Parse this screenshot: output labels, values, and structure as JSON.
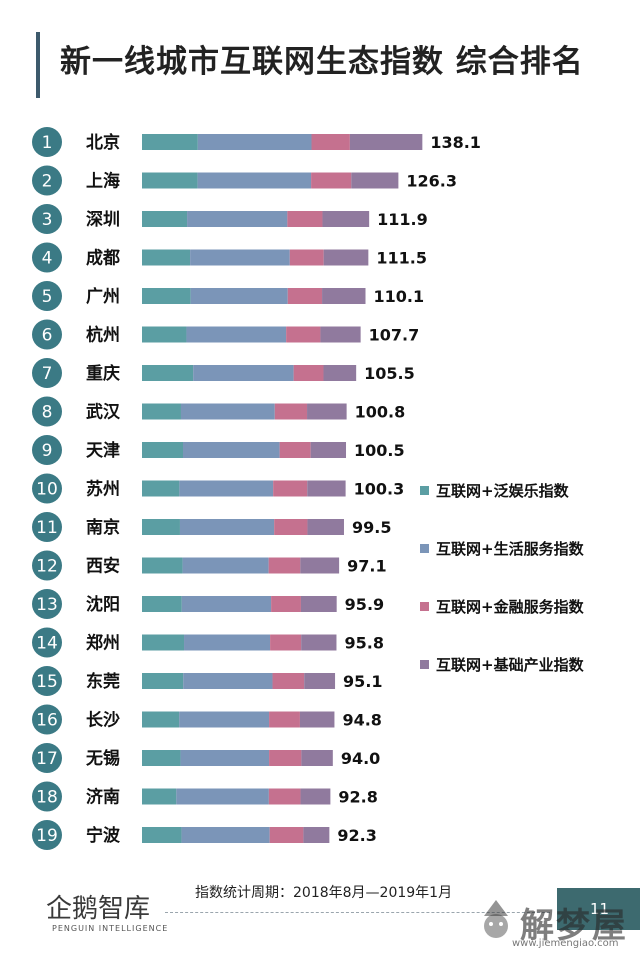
{
  "title": "新一线城市互联网生态指数 综合排名",
  "colors": {
    "entertainment": "#5b9ea3",
    "life_services": "#7b95b8",
    "finance": "#c5718f",
    "infrastructure": "#907a9e",
    "rank_circle": "#3b7a85",
    "title_bar": "#3d5a6c"
  },
  "chart_data": {
    "type": "bar",
    "orientation": "horizontal",
    "stacked": true,
    "title": "新一线城市互联网生态指数 综合排名",
    "ranks": [
      "1",
      "2",
      "3",
      "4",
      "5",
      "6",
      "7",
      "8",
      "9",
      "10",
      "11",
      "12",
      "13",
      "14",
      "15",
      "16",
      "17",
      "18",
      "19"
    ],
    "categories": [
      "北京",
      "上海",
      "深圳",
      "成都",
      "广州",
      "杭州",
      "重庆",
      "武汉",
      "天津",
      "苏州",
      "南京",
      "西安",
      "沈阳",
      "郑州",
      "东莞",
      "长沙",
      "无锡",
      "济南",
      "宁波"
    ],
    "totals": [
      138.1,
      126.3,
      111.9,
      111.5,
      110.1,
      107.7,
      105.5,
      100.8,
      100.5,
      100.3,
      99.5,
      97.1,
      95.9,
      95.8,
      95.1,
      94.8,
      94.0,
      92.8,
      92.3
    ],
    "total_labels": [
      "138.1",
      "126.3",
      "111.9",
      "111.5",
      "110.1",
      "107.7",
      "105.5",
      "100.8",
      "100.5",
      "100.3",
      "99.5",
      "97.1",
      "95.9",
      "95.8",
      "95.1",
      "94.8",
      "94.0",
      "92.8",
      "92.3"
    ],
    "series": [
      {
        "name": "互联网+泛娱乐指数",
        "color": "#5b9ea3",
        "values": [
          27.5,
          27.4,
          22.2,
          23.7,
          24.0,
          21.9,
          25.2,
          19.2,
          20.2,
          18.4,
          18.7,
          20.0,
          19.6,
          20.7,
          20.3,
          18.3,
          19.0,
          16.9,
          19.5
        ]
      },
      {
        "name": "互联网+生活服务指数",
        "color": "#7b95b8",
        "values": [
          56.0,
          55.9,
          49.4,
          49.1,
          47.8,
          49.1,
          49.5,
          46.2,
          47.6,
          46.2,
          46.4,
          42.4,
          44.0,
          42.4,
          44.0,
          44.3,
          43.6,
          45.6,
          43.4
        ]
      },
      {
        "name": "互联网+金融服务指数",
        "color": "#c5718f",
        "values": [
          18.9,
          19.8,
          17.3,
          16.7,
          16.9,
          16.9,
          14.7,
          15.9,
          15.3,
          16.8,
          16.4,
          15.6,
          14.7,
          15.3,
          15.6,
          15.2,
          15.9,
          15.6,
          16.6
        ]
      },
      {
        "name": "互联网+基础产业指数",
        "color": "#907a9e",
        "values": [
          35.7,
          23.2,
          23.0,
          22.0,
          21.4,
          19.8,
          16.1,
          19.5,
          17.4,
          18.9,
          18.0,
          19.1,
          17.6,
          17.4,
          15.2,
          17.0,
          15.5,
          14.7,
          12.8
        ]
      }
    ],
    "legend_position": "right"
  },
  "footer": {
    "period": "指数统计周期：2018年8月—2019年1月",
    "logo": "企鹅智库",
    "logo_sub": "PENGUIN INTELLIGENCE",
    "page": "11"
  },
  "watermark": {
    "text": "解梦屋",
    "url": "www.jiemengiao.com"
  }
}
